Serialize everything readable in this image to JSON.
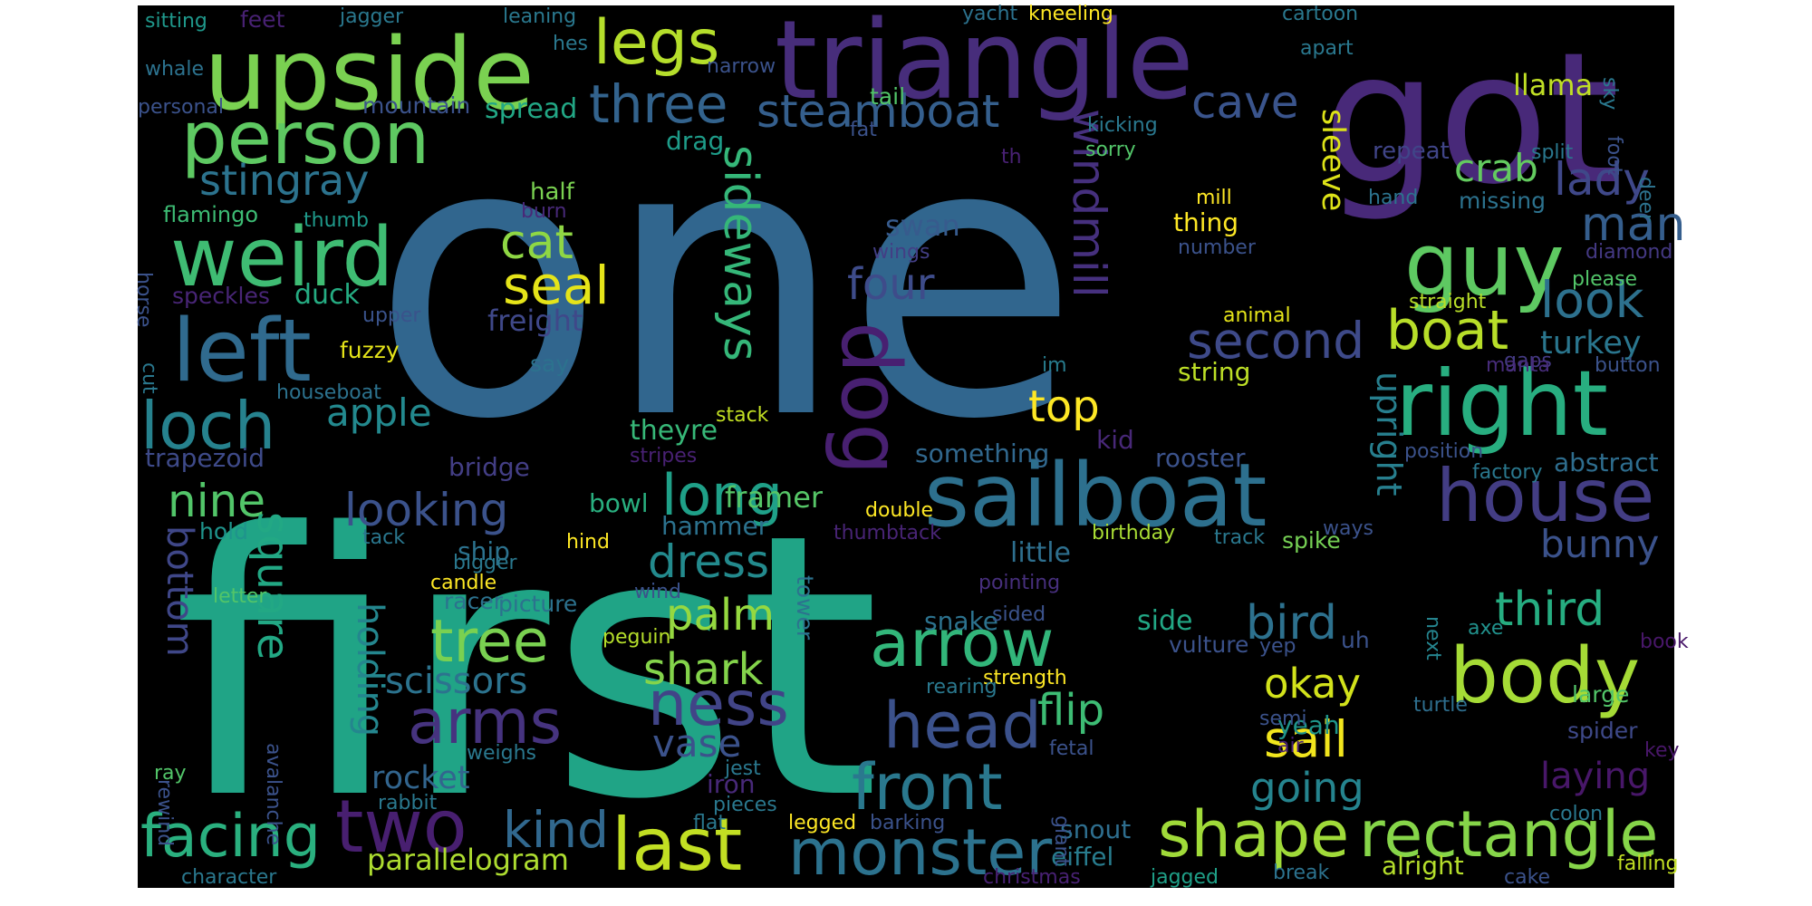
{
  "words": [
    {
      "text": "one",
      "color": "#31668e"
    },
    {
      "text": "first",
      "color": "#20a486"
    },
    {
      "text": "got",
      "color": "#482979"
    },
    {
      "text": "triangle",
      "color": "#472d7b"
    },
    {
      "text": "upside",
      "color": "#7ad151"
    },
    {
      "text": "sailboat",
      "color": "#2d708e"
    },
    {
      "text": "person",
      "color": "#5ec962"
    },
    {
      "text": "weird",
      "color": "#3fbc73"
    },
    {
      "text": "left",
      "color": "#306a8e"
    },
    {
      "text": "right",
      "color": "#28ae80"
    },
    {
      "text": "guy",
      "color": "#5ec962"
    },
    {
      "text": "dog",
      "color": "#482071"
    },
    {
      "text": "monster",
      "color": "#2c728e"
    },
    {
      "text": "rectangle",
      "color": "#86d549"
    },
    {
      "text": "shape",
      "color": "#a0da39"
    },
    {
      "text": "last",
      "color": "#c2df23"
    },
    {
      "text": "body",
      "color": "#a5db36"
    },
    {
      "text": "house",
      "color": "#433d84"
    },
    {
      "text": "arrow",
      "color": "#32b67a"
    },
    {
      "text": "two",
      "color": "#481f70"
    },
    {
      "text": "loch",
      "color": "#26828e"
    },
    {
      "text": "head",
      "color": "#3b518b"
    },
    {
      "text": "front",
      "color": "#2a788e"
    },
    {
      "text": "ness",
      "color": "#414487"
    },
    {
      "text": "arms",
      "color": "#46337f"
    },
    {
      "text": "tree",
      "color": "#7ad151"
    },
    {
      "text": "facing",
      "color": "#2ab07f"
    },
    {
      "text": "legs",
      "color": "#b5de2b"
    },
    {
      "text": "long",
      "color": "#1fa088"
    },
    {
      "text": "three",
      "color": "#33638d"
    },
    {
      "text": "steamboat",
      "color": "#355f8d"
    },
    {
      "text": "second",
      "color": "#3e4a89"
    },
    {
      "text": "windmill",
      "color": "#46307e"
    },
    {
      "text": "seal",
      "color": "#e5e419"
    },
    {
      "text": "cat",
      "color": "#8fd744"
    },
    {
      "text": "sideways",
      "color": "#35b779"
    },
    {
      "text": "boat",
      "color": "#b8de29"
    },
    {
      "text": "look",
      "color": "#2d718e"
    },
    {
      "text": "man",
      "color": "#355e8d"
    },
    {
      "text": "lady",
      "color": "#3f4889"
    },
    {
      "text": "crab",
      "color": "#63cb5f"
    },
    {
      "text": "cave",
      "color": "#3a548c"
    },
    {
      "text": "stingray",
      "color": "#2c738e"
    },
    {
      "text": "apple",
      "color": "#23898e"
    },
    {
      "text": "top",
      "color": "#fde725"
    },
    {
      "text": "four",
      "color": "#3e4c8a"
    },
    {
      "text": "nine",
      "color": "#52c569"
    },
    {
      "text": "looking",
      "color": "#3b528b"
    },
    {
      "text": "square",
      "color": "#22a884"
    },
    {
      "text": "bottom",
      "color": "#3f4788"
    },
    {
      "text": "holding",
      "color": "#24868e"
    },
    {
      "text": "dress",
      "color": "#238a8d"
    },
    {
      "text": "palm",
      "color": "#95d840"
    },
    {
      "text": "shark",
      "color": "#84d44b"
    },
    {
      "text": "scissors",
      "color": "#2c738e"
    },
    {
      "text": "kind",
      "color": "#31688e"
    },
    {
      "text": "flip",
      "color": "#3dbc74"
    },
    {
      "text": "vase",
      "color": "#3b528b"
    },
    {
      "text": "rocket",
      "color": "#32658e"
    },
    {
      "text": "parallelogram",
      "color": "#addc30"
    },
    {
      "text": "third",
      "color": "#26ad81"
    },
    {
      "text": "bird",
      "color": "#2d718e"
    },
    {
      "text": "okay",
      "color": "#d2e21b"
    },
    {
      "text": "sail",
      "color": "#f1e51d"
    },
    {
      "text": "going",
      "color": "#25848e"
    },
    {
      "text": "bunny",
      "color": "#3b528b"
    },
    {
      "text": "laying",
      "color": "#481769"
    },
    {
      "text": "upright",
      "color": "#277f8e"
    },
    {
      "text": "turkey",
      "color": "#2a768e"
    },
    {
      "text": "sleeve",
      "color": "#dde318"
    },
    {
      "text": "llama",
      "color": "#c0df25"
    },
    {
      "text": "repeat",
      "color": "#404588"
    },
    {
      "text": "abstract",
      "color": "#2e6d8e"
    },
    {
      "text": "spike",
      "color": "#75d054"
    },
    {
      "text": "yeah",
      "color": "#1f958b"
    },
    {
      "text": "spider",
      "color": "#3e4989"
    },
    {
      "text": "large",
      "color": "#52c569"
    },
    {
      "text": "alright",
      "color": "#b5de2b"
    },
    {
      "text": "jagged",
      "color": "#1fa088"
    },
    {
      "text": "eiffel",
      "color": "#287c8e"
    },
    {
      "text": "snout",
      "color": "#2e6e8e"
    },
    {
      "text": "string",
      "color": "#bddf26"
    },
    {
      "text": "thing",
      "color": "#fde725"
    },
    {
      "text": "swan",
      "color": "#375b8d"
    },
    {
      "text": "wings",
      "color": "#433e85"
    },
    {
      "text": "freight",
      "color": "#3f4889"
    },
    {
      "text": "duck",
      "color": "#25ac82"
    },
    {
      "text": "speckles",
      "color": "#482576"
    },
    {
      "text": "spread",
      "color": "#22a785"
    },
    {
      "text": "drag",
      "color": "#1e9c89"
    },
    {
      "text": "half",
      "color": "#7ad151"
    },
    {
      "text": "mountain",
      "color": "#3b528b"
    },
    {
      "text": "flamingo",
      "color": "#3dbc74"
    },
    {
      "text": "thumb",
      "color": "#1f998a"
    },
    {
      "text": "burn",
      "color": "#482979"
    },
    {
      "text": "mill",
      "color": "#fde725"
    },
    {
      "text": "missing",
      "color": "#2c728e"
    },
    {
      "text": "hand",
      "color": "#2c738e"
    },
    {
      "text": "number",
      "color": "#3b528b"
    },
    {
      "text": "diamond",
      "color": "#443983"
    },
    {
      "text": "please",
      "color": "#52c569"
    },
    {
      "text": "straight",
      "color": "#b8de29"
    },
    {
      "text": "animal",
      "color": "#e5e419"
    },
    {
      "text": "gaps",
      "color": "#443a83"
    },
    {
      "text": "manta",
      "color": "#472c7a"
    },
    {
      "text": "button",
      "color": "#3b528b"
    },
    {
      "text": "im",
      "color": "#287d8e"
    },
    {
      "text": "say",
      "color": "#2c728e"
    },
    {
      "text": "fuzzy",
      "color": "#e5e419"
    },
    {
      "text": "upper",
      "color": "#3a538b"
    },
    {
      "text": "houseboat",
      "color": "#2c728e"
    },
    {
      "text": "theyre",
      "color": "#37b878"
    },
    {
      "text": "stack",
      "color": "#c2df23"
    },
    {
      "text": "stripes",
      "color": "#482173"
    },
    {
      "text": "position",
      "color": "#3b528b"
    },
    {
      "text": "factory",
      "color": "#2a788e"
    },
    {
      "text": "something",
      "color": "#31688e"
    },
    {
      "text": "rooster",
      "color": "#3b528b"
    },
    {
      "text": "kid",
      "color": "#482878"
    },
    {
      "text": "framer",
      "color": "#56c667"
    },
    {
      "text": "trapezoid",
      "color": "#3e4a89"
    },
    {
      "text": "bridge",
      "color": "#433e85"
    },
    {
      "text": "bowl",
      "color": "#29af7f"
    },
    {
      "text": "tower",
      "color": "#2c738e"
    },
    {
      "text": "double",
      "color": "#fde725"
    },
    {
      "text": "thumbtack",
      "color": "#482475"
    },
    {
      "text": "hammer",
      "color": "#2c728e"
    },
    {
      "text": "little",
      "color": "#2e6f8e"
    },
    {
      "text": "birthday",
      "color": "#a8db34"
    },
    {
      "text": "track",
      "color": "#2a788e"
    },
    {
      "text": "ways",
      "color": "#3b528b"
    },
    {
      "text": "hold",
      "color": "#1f948c"
    },
    {
      "text": "tack",
      "color": "#2a778e"
    },
    {
      "text": "ship",
      "color": "#2c728e"
    },
    {
      "text": "bigger",
      "color": "#2a788e"
    },
    {
      "text": "hind",
      "color": "#fde725"
    },
    {
      "text": "candle",
      "color": "#fde725"
    },
    {
      "text": "letter",
      "color": "#52c569"
    },
    {
      "text": "racer",
      "color": "#2c728e"
    },
    {
      "text": "picture",
      "color": "#2c728e"
    },
    {
      "text": "wind",
      "color": "#3b528b"
    },
    {
      "text": "pointing",
      "color": "#472f7d"
    },
    {
      "text": "snake",
      "color": "#2c728e"
    },
    {
      "text": "sided",
      "color": "#3b528b"
    },
    {
      "text": "side",
      "color": "#22a785"
    },
    {
      "text": "vulture",
      "color": "#3b528b"
    },
    {
      "text": "uh",
      "color": "#3b528b"
    },
    {
      "text": "next",
      "color": "#25848e"
    },
    {
      "text": "axe",
      "color": "#21918c"
    },
    {
      "text": "book",
      "color": "#481769"
    },
    {
      "text": "yep",
      "color": "#3b528b"
    },
    {
      "text": "peguin",
      "color": "#b5de2b"
    },
    {
      "text": "avalanche",
      "color": "#3b528b"
    },
    {
      "text": "strength",
      "color": "#fde725"
    },
    {
      "text": "rearing",
      "color": "#2a788e"
    },
    {
      "text": "turtle",
      "color": "#2e6e8e"
    },
    {
      "text": "semi",
      "color": "#3b528b"
    },
    {
      "text": "air",
      "color": "#482173"
    },
    {
      "text": "fetal",
      "color": "#3b528b"
    },
    {
      "text": "key",
      "color": "#481769"
    },
    {
      "text": "rewind",
      "color": "#3b528b"
    },
    {
      "text": "ray",
      "color": "#52c569"
    },
    {
      "text": "weighs",
      "color": "#2a788e"
    },
    {
      "text": "jest",
      "color": "#2a788e"
    },
    {
      "text": "iron",
      "color": "#482979"
    },
    {
      "text": "pieces",
      "color": "#2a788e"
    },
    {
      "text": "rabbit",
      "color": "#2a788e"
    },
    {
      "text": "flat",
      "color": "#2a788e"
    },
    {
      "text": "legged",
      "color": "#fde725"
    },
    {
      "text": "barking",
      "color": "#3b528b"
    },
    {
      "text": "giant",
      "color": "#3b528b"
    },
    {
      "text": "colon",
      "color": "#2a788e"
    },
    {
      "text": "character",
      "color": "#2a788e"
    },
    {
      "text": "christmas",
      "color": "#482173"
    },
    {
      "text": "break",
      "color": "#2c728e"
    },
    {
      "text": "cake",
      "color": "#3b528b"
    },
    {
      "text": "falling",
      "color": "#c2df23"
    },
    {
      "text": "sitting",
      "color": "#1f988b"
    },
    {
      "text": "feet",
      "color": "#482173"
    },
    {
      "text": "jagger",
      "color": "#2a788e"
    },
    {
      "text": "leaning",
      "color": "#2a788e"
    },
    {
      "text": "yacht",
      "color": "#2c728e"
    },
    {
      "text": "kneeling",
      "color": "#fde725"
    },
    {
      "text": "cartoon",
      "color": "#2a788e"
    },
    {
      "text": "whale",
      "color": "#2c728e"
    },
    {
      "text": "hes",
      "color": "#2a788e"
    },
    {
      "text": "narrow",
      "color": "#3b528b"
    },
    {
      "text": "apart",
      "color": "#2a788e"
    },
    {
      "text": "sky",
      "color": "#2a788e"
    },
    {
      "text": "tail",
      "color": "#52c569"
    },
    {
      "text": "personal",
      "color": "#3b528b"
    },
    {
      "text": "kicking",
      "color": "#2a788e"
    },
    {
      "text": "foot",
      "color": "#3b528b"
    },
    {
      "text": "fat",
      "color": "#3b528b"
    },
    {
      "text": "th",
      "color": "#482173"
    },
    {
      "text": "sorry",
      "color": "#52c569"
    },
    {
      "text": "split",
      "color": "#2a788e"
    },
    {
      "text": "deer",
      "color": "#2c728e"
    },
    {
      "text": "horse",
      "color": "#3b528b"
    },
    {
      "text": "cut",
      "color": "#2a788e"
    }
  ]
}
